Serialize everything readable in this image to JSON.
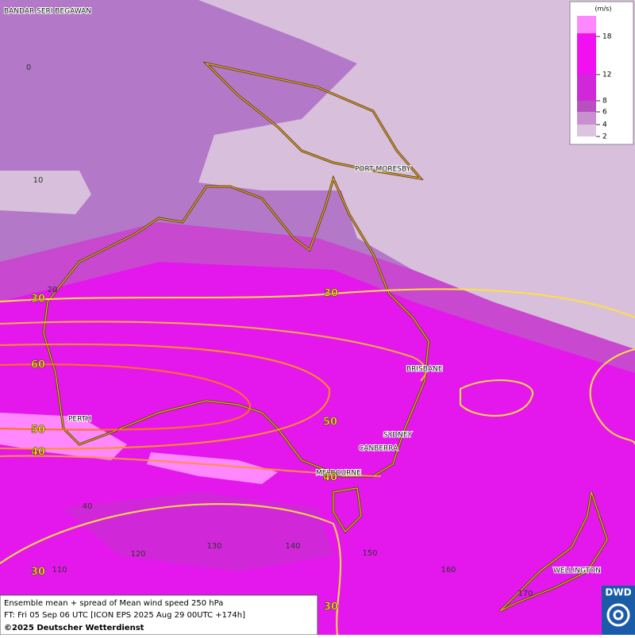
{
  "map": {
    "cities": [
      "BANDAR SERI BEGAWAN",
      "PORT MORESBY",
      "BRISBANE",
      "SYDNEY",
      "CANBERRA",
      "MELBOURNE",
      "PERTH",
      "WELLINGTON"
    ],
    "lat_labels": [
      0,
      10,
      20,
      40
    ],
    "lon_labels": [
      110,
      120,
      130,
      140,
      150,
      160,
      170
    ],
    "contour_labels": [
      30,
      30,
      60,
      50,
      50,
      40,
      40,
      30,
      30
    ]
  },
  "legend": {
    "unit": "(m/s)",
    "ticks": [
      18,
      12,
      8,
      6,
      4,
      2
    ]
  },
  "footer": {
    "line1": "Ensemble mean + spread of Mean wind speed 250 hPa",
    "line2": "FT: Fri 05 Sep 06 UTC [ICON EPS 2025 Aug 29 00UTC +174h]",
    "line3": "©2025 Deutscher Wetterdienst",
    "logo": "DWD"
  }
}
